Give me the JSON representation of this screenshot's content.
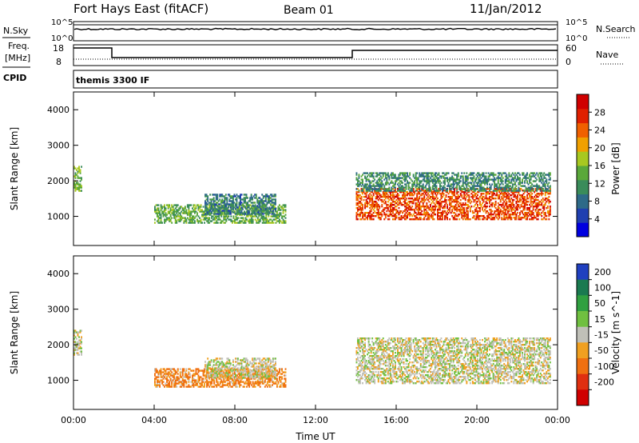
{
  "header": {
    "station": "Fort Hays East (fitACF)",
    "beam": "Beam 01",
    "date": "11/Jan/2012"
  },
  "status_panel": {
    "left_labels": [
      "N.Sky",
      "Freq.",
      "[MHz]",
      "CPID"
    ],
    "right_labels": [
      "N.Search",
      "Nave"
    ],
    "sky_ticks": [
      "10^5",
      "10^0"
    ],
    "search_ticks": [
      "10^5",
      "10^0"
    ],
    "freq_ticks": [
      "18",
      "8"
    ],
    "nave_ticks": [
      "60",
      "0"
    ],
    "cpid_text": "themis 3300 IF"
  },
  "chart_data": [
    {
      "type": "heatmap",
      "title": "Power",
      "ylabel": "Slant Range [km]",
      "xlabel": "Time UT",
      "x_ticks": [
        "00:00",
        "04:00",
        "08:00",
        "12:00",
        "16:00",
        "20:00",
        "00:00"
      ],
      "xlim": [
        0,
        24
      ],
      "y_ticks": [
        "1000",
        "2000",
        "3000",
        "4000"
      ],
      "ylim": [
        180,
        4500
      ],
      "colorbar_label": "Power [dB]",
      "colorbar_ticks": [
        "4",
        "8",
        "12",
        "16",
        "20",
        "24",
        "28"
      ],
      "colorbar_range": [
        0,
        30
      ],
      "colors": [
        "#0000e0",
        "#1f3fb0",
        "#2e6a88",
        "#3a8c5a",
        "#5aa83a",
        "#a8c820",
        "#f0a000",
        "#f06000",
        "#e02000",
        "#d00000"
      ],
      "regions": [
        {
          "t": [
            0.0,
            0.4
          ],
          "r": [
            1700,
            2400
          ],
          "level": 14
        },
        {
          "t": [
            4.0,
            10.5
          ],
          "r": [
            800,
            1300
          ],
          "level": 13
        },
        {
          "t": [
            6.5,
            10.0
          ],
          "r": [
            1050,
            1600
          ],
          "level": 9
        },
        {
          "t": [
            14.0,
            23.6
          ],
          "r": [
            900,
            1800
          ],
          "level": 24
        },
        {
          "t": [
            14.0,
            23.6
          ],
          "r": [
            1700,
            2200
          ],
          "level": 10
        }
      ]
    },
    {
      "type": "heatmap",
      "title": "Velocity",
      "ylabel": "Slant Range [km]",
      "xlabel": "Time UT",
      "x_ticks": [
        "00:00",
        "04:00",
        "08:00",
        "12:00",
        "16:00",
        "20:00",
        "00:00"
      ],
      "xlim": [
        0,
        24
      ],
      "y_ticks": [
        "1000",
        "2000",
        "3000",
        "4000"
      ],
      "ylim": [
        180,
        4500
      ],
      "colorbar_label": "Velocity [m s^-1]",
      "colorbar_ticks": [
        "200",
        "100",
        "50",
        "15",
        "-15",
        "-50",
        "-100",
        "-200"
      ],
      "colors": [
        "#2040c0",
        "#1a7a50",
        "#30a040",
        "#70c040",
        "#c0c0b8",
        "#f0a020",
        "#f07010",
        "#e03010",
        "#d00000"
      ],
      "regions": [
        {
          "t": [
            0.0,
            0.4
          ],
          "r": [
            1700,
            2400
          ],
          "value": 0
        },
        {
          "t": [
            4.0,
            10.5
          ],
          "r": [
            800,
            1300
          ],
          "value": -40
        },
        {
          "t": [
            6.5,
            10.0
          ],
          "r": [
            1050,
            1600
          ],
          "value": 0
        },
        {
          "t": [
            14.0,
            23.6
          ],
          "r": [
            900,
            2200
          ],
          "value": 0
        }
      ]
    }
  ]
}
